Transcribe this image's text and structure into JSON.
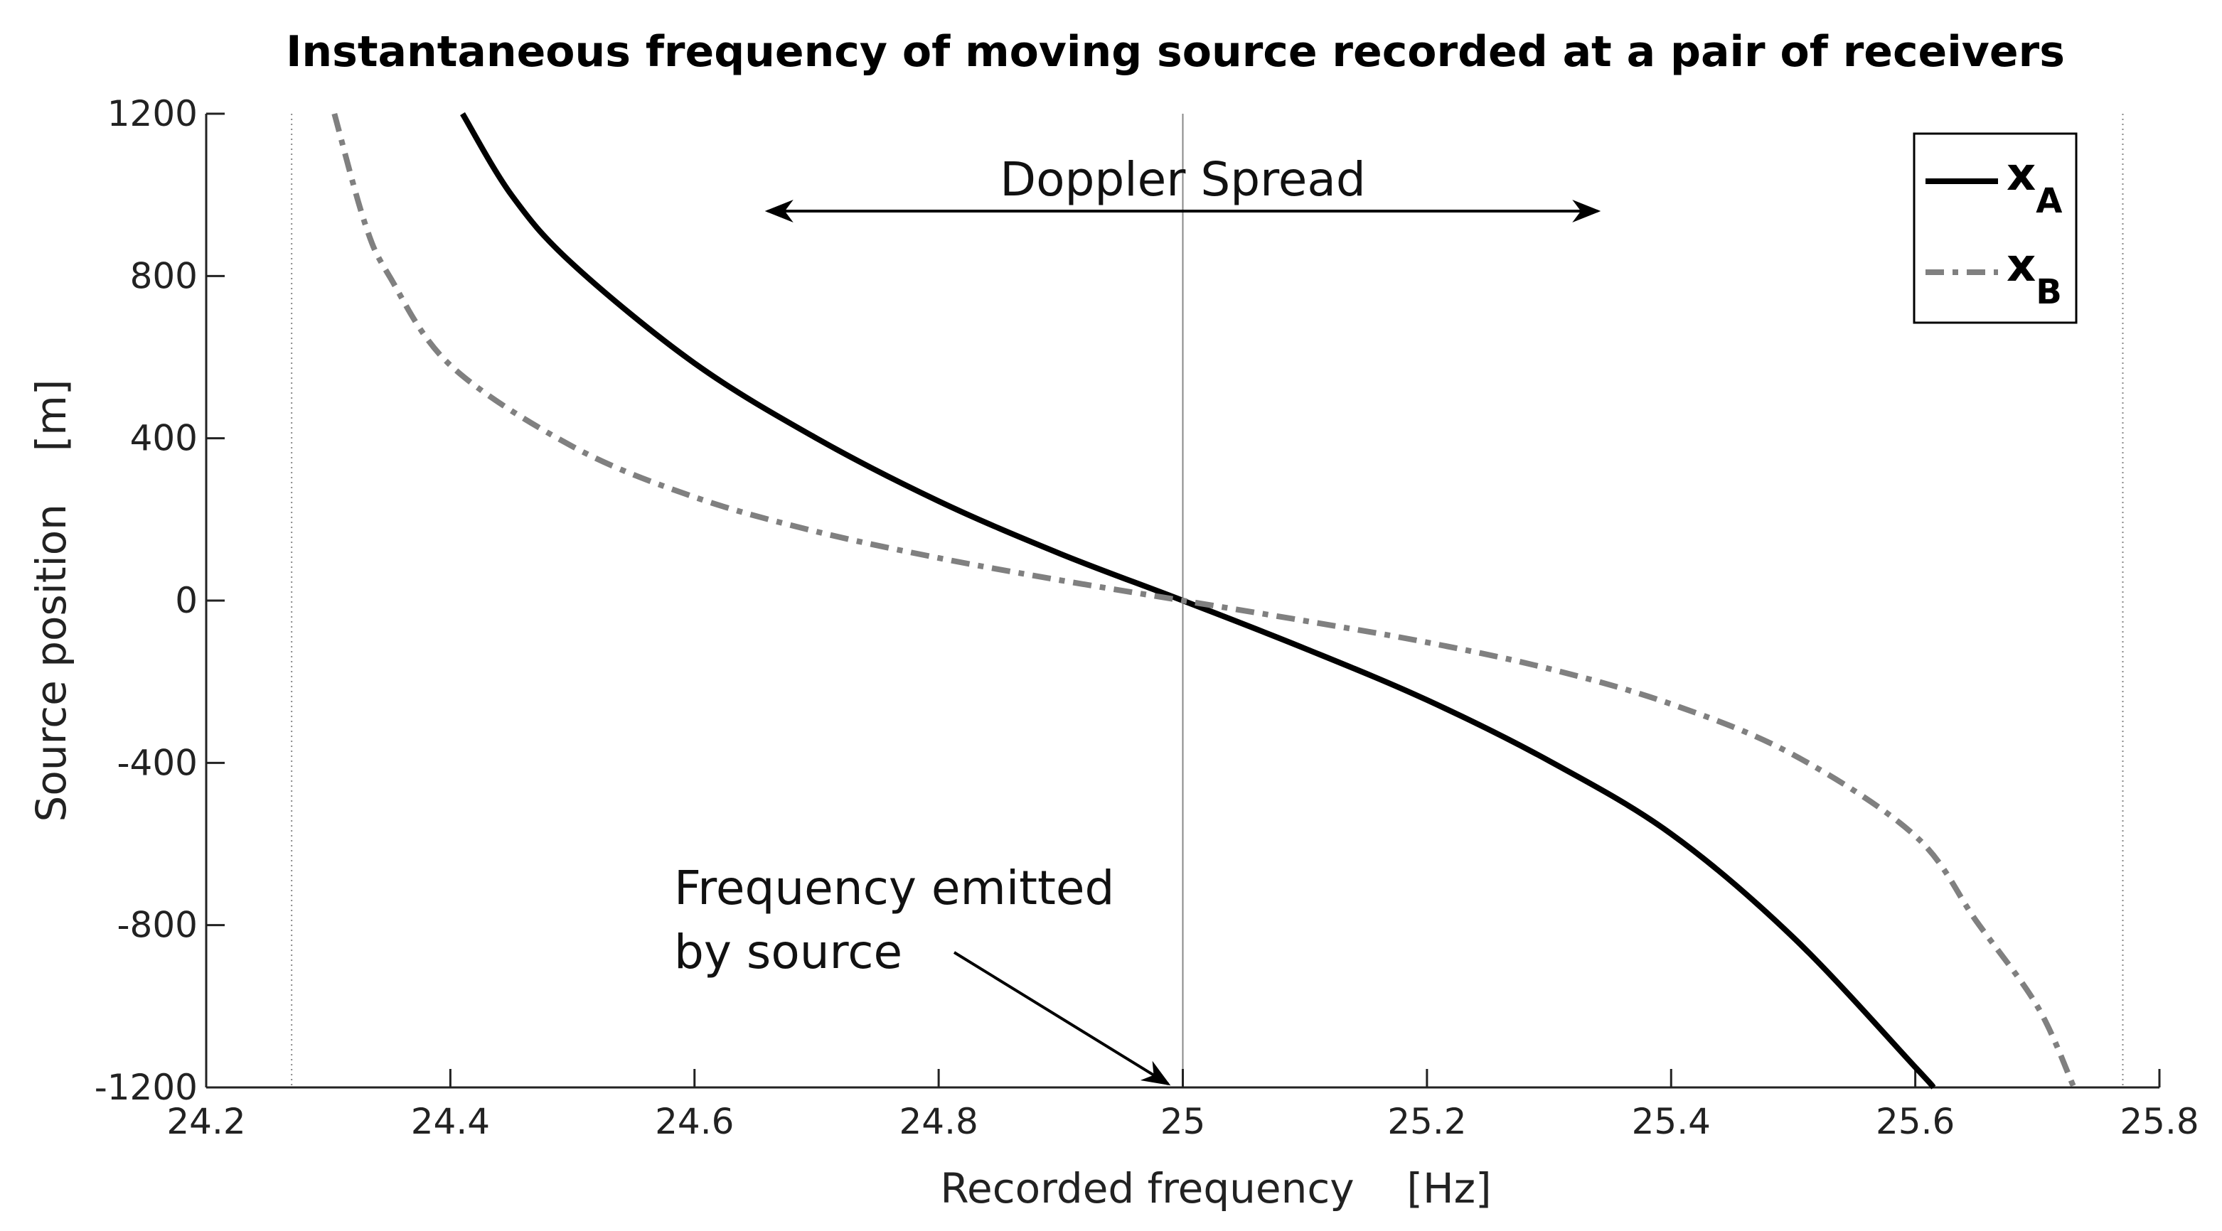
{
  "chart_data": {
    "type": "line",
    "title": "Instantaneous frequency of moving source recorded at a pair of receivers",
    "xlabel": "Recorded frequency    [Hz]",
    "ylabel": "Source position    [m]",
    "xlim": [
      24.2,
      25.8
    ],
    "ylim": [
      -1200,
      1200
    ],
    "xticks": [
      "24.2",
      "24.4",
      "24.6",
      "24.8",
      "25",
      "25.2",
      "25.4",
      "25.6",
      "25.8"
    ],
    "xtick_values": [
      24.2,
      24.4,
      24.6,
      24.8,
      25.0,
      25.2,
      25.4,
      25.6,
      25.8
    ],
    "yticks": [
      "1200",
      "800",
      "400",
      "0",
      "-400",
      "-800",
      "-1200"
    ],
    "ytick_values": [
      1200,
      800,
      400,
      0,
      -400,
      -800,
      -1200
    ],
    "grid": false,
    "legend_position": "top-right",
    "series": [
      {
        "name": "x",
        "subscript": "A",
        "style": "solid",
        "color": "#000000",
        "x": [
          24.41,
          24.45,
          24.5,
          24.6,
          24.7,
          24.8,
          24.9,
          25.0,
          25.1,
          25.2,
          25.3,
          25.4,
          25.5,
          25.6,
          25.615
        ],
        "y": [
          1200,
          1000,
          830,
          585,
          400,
          245,
          115,
          0,
          -118,
          -245,
          -395,
          -575,
          -830,
          -1150,
          -1200
        ]
      },
      {
        "name": "x",
        "subscript": "B",
        "style": "dashdot",
        "color": "#808080",
        "x": [
          24.305,
          24.33,
          24.35,
          24.4,
          24.5,
          24.6,
          24.7,
          24.8,
          24.9,
          25.0,
          25.1,
          25.2,
          25.3,
          25.4,
          25.5,
          25.6,
          25.65,
          25.7,
          25.73
        ],
        "y": [
          1200,
          930,
          800,
          580,
          380,
          255,
          170,
          105,
          50,
          0,
          -50,
          -103,
          -168,
          -255,
          -380,
          -580,
          -790,
          -1000,
          -1200
        ]
      }
    ],
    "reference_lines": {
      "emitted_frequency": 25.0,
      "dotted_bounds": [
        24.27,
        25.77
      ]
    },
    "annotations": {
      "doppler_spread": {
        "text": "Doppler Spread",
        "from_x": 24.66,
        "to_x": 25.34,
        "y": 960
      },
      "emitted": {
        "line1": "Frequency emitted",
        "line2": "by source",
        "arrow_to_x": 24.995,
        "arrow_to_y": -1160
      }
    }
  }
}
